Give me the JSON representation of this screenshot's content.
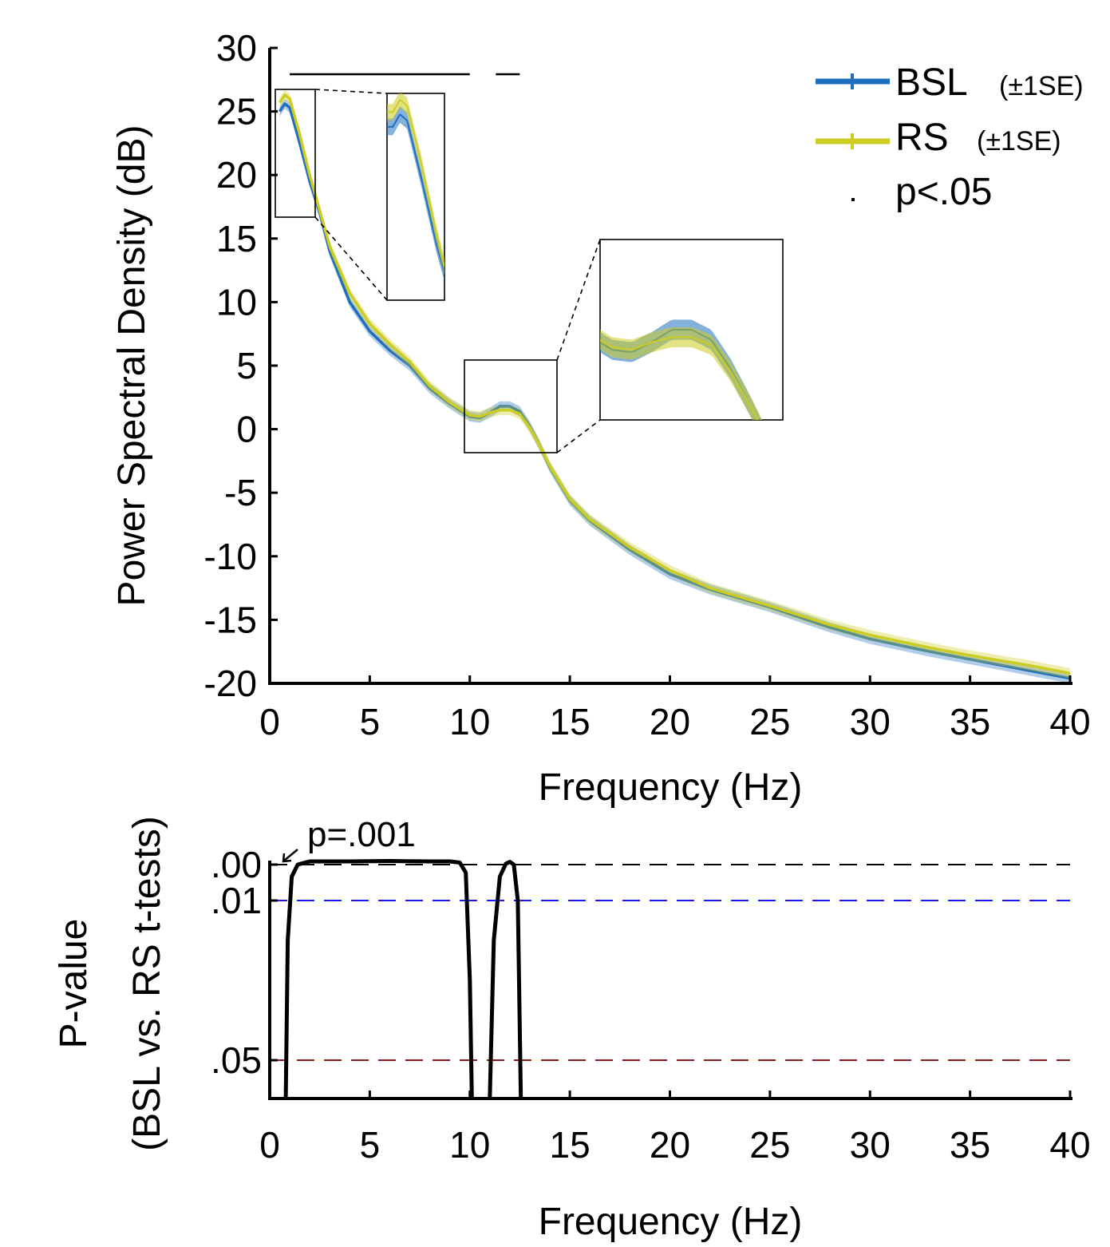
{
  "chart_data": [
    {
      "type": "line",
      "title": "",
      "xlabel": "Frequency (Hz)",
      "ylabel": "Power Spectral Density (dB)",
      "xlim": [
        0,
        40
      ],
      "ylim": [
        -20,
        30
      ],
      "xticks": [
        "0",
        "5",
        "10",
        "15",
        "20",
        "25",
        "30",
        "35",
        "40"
      ],
      "yticks": [
        "30",
        "25",
        "20",
        "15",
        "10",
        "5",
        "0",
        "-5",
        "-10",
        "-15",
        "-20"
      ],
      "legend_position": "top-right",
      "legend": [
        {
          "label": "BSL",
          "suffix": "(±1SE)",
          "color": "#1f6fbf"
        },
        {
          "label": "RS",
          "suffix": "(±1SE)",
          "color": "#cccc22"
        },
        {
          "label": "p<.05",
          "suffix": "",
          "color": "#000000"
        }
      ],
      "x": [
        0.5,
        0.75,
        1,
        1.5,
        2,
        2.5,
        3,
        4,
        5,
        6,
        7,
        8,
        9,
        10,
        10.5,
        11,
        11.5,
        12,
        12.5,
        13,
        13.5,
        14,
        15,
        16,
        18,
        20,
        22,
        25,
        28,
        30,
        33,
        35,
        38,
        40
      ],
      "series": [
        {
          "name": "BSL",
          "color": "#1f6fbf",
          "se": 0.4,
          "values": [
            25.0,
            25.6,
            25.3,
            22.5,
            19.5,
            17.0,
            14.0,
            10.0,
            7.7,
            6.2,
            5.0,
            3.2,
            2.0,
            1.0,
            0.9,
            1.3,
            1.8,
            1.8,
            1.4,
            0.2,
            -1.3,
            -3.0,
            -5.6,
            -7.2,
            -9.5,
            -11.4,
            -12.6,
            -14.0,
            -15.6,
            -16.5,
            -17.5,
            -18.1,
            -19.0,
            -19.6
          ]
        },
        {
          "name": "RS",
          "color": "#cccc22",
          "se": 0.4,
          "values": [
            25.7,
            26.3,
            26.0,
            23.2,
            20.0,
            17.2,
            14.4,
            10.7,
            8.3,
            6.7,
            5.3,
            3.4,
            2.1,
            1.1,
            1.0,
            1.3,
            1.5,
            1.5,
            1.2,
            0.1,
            -1.3,
            -2.9,
            -5.5,
            -7.1,
            -9.3,
            -11.1,
            -12.5,
            -13.9,
            -15.4,
            -16.2,
            -17.2,
            -17.8,
            -18.6,
            -19.2
          ]
        }
      ],
      "significance_bars_x": [
        [
          1,
          10
        ],
        [
          11.3,
          12.5
        ]
      ],
      "insets": [
        {
          "x_range": [
            0.3,
            2.3
          ],
          "y_range": [
            16.7,
            26.6
          ]
        },
        {
          "x_range": [
            9.7,
            14.3
          ],
          "y_range": [
            -1.8,
            5.4
          ]
        }
      ]
    },
    {
      "type": "line",
      "title": "",
      "xlabel": "Frequency (Hz)",
      "ylabel": "P-value",
      "ylabel2": "(BSL vs. RS t-tests)",
      "xlim": [
        0,
        40
      ],
      "xticks": [
        "0",
        "5",
        "10",
        "15",
        "20",
        "25",
        "30",
        "35",
        "40"
      ],
      "yticks": [
        ".00",
        ".01",
        ".05"
      ],
      "reference_lines": [
        {
          "value": 0.001,
          "color": "#000000"
        },
        {
          "value": 0.01,
          "color": "#1a1aee"
        },
        {
          "value": 0.05,
          "color": "#8b1a1a"
        }
      ],
      "annotation": "p=.001",
      "x": [
        0.8,
        0.9,
        1.1,
        1.4,
        2,
        4,
        6,
        8,
        9,
        9.5,
        9.8,
        10,
        10.1,
        11.0,
        11.2,
        11.5,
        11.8,
        12.0,
        12.2,
        12.4,
        12.55
      ],
      "series": [
        {
          "name": "p",
          "color": "#000000",
          "values": [
            0.06,
            0.02,
            0.004,
            0.001,
            0.0002,
            0.0002,
            0.0001,
            0.0002,
            0.0002,
            0.0005,
            0.003,
            0.03,
            0.06,
            0.06,
            0.02,
            0.004,
            0.0008,
            0.0003,
            0.001,
            0.01,
            0.06
          ]
        }
      ]
    }
  ]
}
